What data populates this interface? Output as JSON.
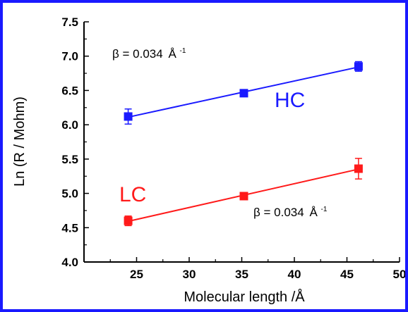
{
  "chart_data": {
    "type": "scatter",
    "xlabel": "Molecular length /Å",
    "ylabel": "Ln (R / Mohm)",
    "xlim": [
      20,
      50
    ],
    "ylim": [
      4.0,
      7.5
    ],
    "x_ticks": [
      "25",
      "30",
      "35",
      "40",
      "45",
      "50"
    ],
    "y_ticks": [
      "4.0",
      "4.5",
      "5.0",
      "5.5",
      "6.0",
      "6.5",
      "7.0",
      "7.5"
    ],
    "fit_lines": true,
    "series": [
      {
        "name": "HC",
        "color": "#1a1aff",
        "x": [
          24.2,
          35.2,
          46.1
        ],
        "y": [
          6.12,
          6.46,
          6.85
        ],
        "err": [
          0.11,
          0.04,
          0.07
        ]
      },
      {
        "name": "LC",
        "color": "#ff1a1a",
        "x": [
          24.2,
          35.2,
          46.1
        ],
        "y": [
          4.6,
          4.96,
          5.36
        ],
        "err": [
          0.07,
          0.03,
          0.15
        ]
      }
    ],
    "annotations": [
      {
        "text": "β = 0.034",
        "unit": "Å",
        "sup": "-1",
        "near": "HC"
      },
      {
        "text": "β = 0.034",
        "unit": "Å",
        "sup": "-1",
        "near": "LC"
      }
    ]
  }
}
